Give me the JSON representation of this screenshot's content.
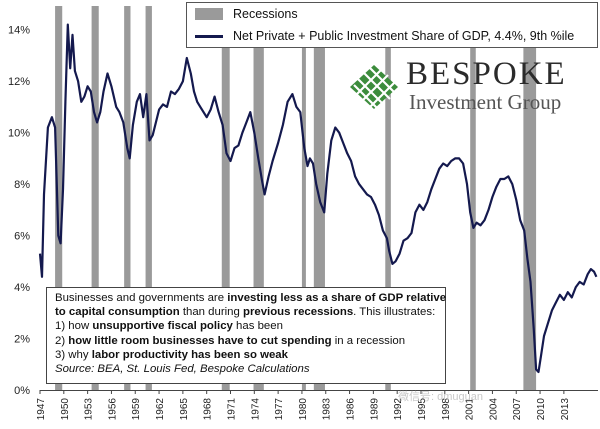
{
  "legend": {
    "recessions": "Recessions",
    "series": "Net Private + Public Investment Share of GDP, 4.4%, 9th %ile"
  },
  "logo": {
    "name": "BESPOKE",
    "subtitle": "Investment Group"
  },
  "note": {
    "l1": {
      "a": "Businesses and governments are ",
      "b": "investing less as a share of GDP relative"
    },
    "l2": {
      "a": "to capital consumption",
      "b": " than during ",
      "c": "previous recessions",
      "d": ".  This illustrates:"
    },
    "l3": {
      "a": "1) how ",
      "b": "unsupportive fiscal policy",
      "c": " has been"
    },
    "l4": {
      "a": "2) ",
      "b": "how little room businesses have to cut spending",
      "c": " in a recession"
    },
    "l5": {
      "a": "3) why ",
      "b": "labor productivity has been so weak"
    },
    "l6": "Source: BEA, St. Louis Fed, Bespoke Calculations"
  },
  "watermark": "微信号: dmuguan",
  "colors": {
    "line": "#14194e",
    "recession": "#9a9a9a",
    "logo_green": "#3c8c3c"
  },
  "chart_data": {
    "type": "line",
    "title": "",
    "xlabel": "",
    "ylabel": "",
    "ylim": [
      0,
      15
    ],
    "xlim": [
      1947,
      2017.3
    ],
    "y_ticks": [
      0,
      2,
      4,
      6,
      8,
      10,
      12,
      14
    ],
    "y_tick_labels": [
      "0%",
      "2%",
      "4%",
      "6%",
      "8%",
      "10%",
      "12%",
      "14%"
    ],
    "x_ticks": [
      1947,
      1950,
      1953,
      1956,
      1959,
      1962,
      1965,
      1968,
      1971,
      1974,
      1977,
      1980,
      1983,
      1986,
      1989,
      1992,
      1995,
      1998,
      2001,
      2004,
      2007,
      2010,
      2013
    ],
    "x_tick_labels": [
      "1947",
      "1950",
      "1953",
      "1956",
      "1959",
      "1962",
      "1965",
      "1968",
      "1971",
      "1974",
      "1977",
      "1980",
      "1983",
      "1986",
      "1989",
      "1992",
      "1995",
      "1998",
      "2001",
      "2004",
      "2007",
      "2010",
      "2013"
    ],
    "recessions": [
      [
        1948.9,
        1949.8
      ],
      [
        1953.5,
        1954.4
      ],
      [
        1957.6,
        1958.4
      ],
      [
        1960.3,
        1961.1
      ],
      [
        1969.9,
        1970.9
      ],
      [
        1973.9,
        1975.2
      ],
      [
        1980.0,
        1980.5
      ],
      [
        1981.5,
        1982.9
      ],
      [
        1990.5,
        1991.2
      ],
      [
        2001.2,
        2001.9
      ],
      [
        2007.9,
        2009.5
      ]
    ],
    "series": [
      {
        "name": "Net Private + Public Investment Share of GDP, 4.4%, 9th %ile",
        "x": [
          1947.0,
          1947.25,
          1947.5,
          1948.0,
          1948.5,
          1948.9,
          1949.3,
          1949.6,
          1949.9,
          1950.2,
          1950.5,
          1950.8,
          1951.1,
          1951.4,
          1951.8,
          1952.2,
          1952.6,
          1953.0,
          1953.4,
          1953.8,
          1954.2,
          1954.6,
          1955.0,
          1955.5,
          1956.0,
          1956.6,
          1957.0,
          1957.5,
          1958.0,
          1958.3,
          1958.7,
          1959.2,
          1959.6,
          1960.0,
          1960.4,
          1960.8,
          1961.2,
          1961.6,
          1962.0,
          1962.5,
          1963.0,
          1963.5,
          1964.0,
          1964.5,
          1965.0,
          1965.5,
          1966.0,
          1966.4,
          1966.8,
          1967.2,
          1967.6,
          1968.0,
          1968.5,
          1969.0,
          1969.5,
          1970.0,
          1970.5,
          1971.0,
          1971.5,
          1972.0,
          1972.5,
          1973.0,
          1973.5,
          1974.0,
          1974.5,
          1975.0,
          1975.3,
          1975.8,
          1976.3,
          1977.0,
          1977.6,
          1978.2,
          1978.8,
          1979.3,
          1979.8,
          1980.3,
          1980.7,
          1981.0,
          1981.4,
          1981.8,
          1982.3,
          1982.8,
          1983.2,
          1983.7,
          1984.2,
          1984.7,
          1985.2,
          1985.7,
          1986.2,
          1986.7,
          1987.2,
          1987.7,
          1988.2,
          1988.7,
          1989.2,
          1989.7,
          1990.2,
          1990.7,
          1991.0,
          1991.4,
          1991.8,
          1992.3,
          1992.8,
          1993.3,
          1993.8,
          1994.3,
          1994.8,
          1995.3,
          1995.8,
          1996.3,
          1996.8,
          1997.3,
          1997.8,
          1998.3,
          1998.8,
          1999.3,
          1999.8,
          2000.3,
          2000.8,
          2001.2,
          2001.6,
          2002.0,
          2002.5,
          2003.0,
          2003.5,
          2004.0,
          2004.5,
          2005.0,
          2005.5,
          2006.0,
          2006.5,
          2007.0,
          2007.5,
          2008.0,
          2008.4,
          2008.8,
          2009.2,
          2009.5,
          2009.8,
          2010.1,
          2010.5,
          2011.0,
          2011.5,
          2012.0,
          2012.5,
          2013.0,
          2013.5,
          2014.0,
          2014.5,
          2015.0,
          2015.5,
          2016.0,
          2016.4,
          2016.8,
          2017.1
        ],
        "values": [
          5.3,
          4.4,
          7.6,
          10.2,
          10.6,
          10.2,
          6.0,
          5.7,
          7.8,
          11.2,
          14.2,
          12.5,
          13.8,
          12.4,
          12.0,
          11.2,
          11.4,
          11.8,
          11.6,
          10.8,
          10.4,
          10.8,
          11.6,
          12.3,
          11.8,
          11.0,
          10.8,
          10.4,
          9.4,
          9.0,
          10.3,
          11.2,
          11.5,
          10.6,
          11.5,
          9.7,
          9.9,
          10.4,
          10.9,
          11.1,
          11.0,
          11.6,
          11.5,
          11.7,
          12.0,
          12.9,
          12.3,
          11.6,
          11.2,
          11.0,
          10.8,
          10.6,
          10.9,
          11.4,
          10.8,
          10.3,
          9.2,
          8.9,
          9.4,
          9.5,
          10.0,
          10.4,
          10.8,
          10.0,
          9.0,
          8.1,
          7.6,
          8.3,
          8.9,
          9.6,
          10.3,
          11.2,
          11.5,
          11.0,
          10.8,
          9.4,
          8.7,
          9.0,
          8.8,
          8.0,
          7.3,
          6.9,
          8.4,
          9.7,
          10.2,
          10.0,
          9.6,
          9.2,
          8.9,
          8.3,
          8.0,
          7.8,
          7.6,
          7.5,
          7.2,
          6.8,
          6.2,
          5.9,
          5.4,
          4.9,
          5.0,
          5.3,
          5.8,
          5.9,
          6.1,
          6.9,
          7.2,
          7.0,
          7.3,
          7.8,
          8.2,
          8.6,
          8.8,
          8.7,
          8.9,
          9.0,
          9.0,
          8.8,
          8.0,
          6.9,
          6.3,
          6.5,
          6.4,
          6.6,
          7.0,
          7.5,
          7.9,
          8.2,
          8.2,
          8.3,
          8.0,
          7.4,
          6.6,
          6.2,
          5.1,
          4.2,
          2.4,
          0.8,
          0.7,
          1.3,
          2.1,
          2.6,
          3.1,
          3.4,
          3.7,
          3.5,
          3.8,
          3.6,
          4.0,
          4.2,
          4.1,
          4.5,
          4.7,
          4.6,
          4.4
        ]
      }
    ]
  }
}
